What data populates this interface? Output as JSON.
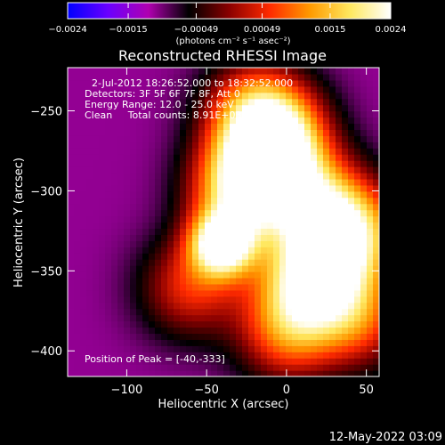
{
  "chart_data": {
    "type": "heatmap",
    "title": "Reconstructed RHESSI Image",
    "xlabel": "Heliocentric X (arcsec)",
    "ylabel": "Heliocentric Y (arcsec)",
    "xlim": [
      -137,
      58
    ],
    "ylim": [
      -416,
      -223
    ],
    "x_ticks": [
      {
        "value": -100,
        "label": "−100"
      },
      {
        "value": -50,
        "label": "−50"
      },
      {
        "value": 0,
        "label": "0"
      },
      {
        "value": 50,
        "label": "50"
      }
    ],
    "y_ticks": [
      {
        "value": -250,
        "label": "−250"
      },
      {
        "value": -300,
        "label": "−300"
      },
      {
        "value": -350,
        "label": "−350"
      },
      {
        "value": -400,
        "label": "−400"
      }
    ],
    "colorbar": {
      "min": -0.0024,
      "max": 0.0024,
      "ticks": [
        {
          "value": -0.0024,
          "label": "−0.0024"
        },
        {
          "value": -0.0015,
          "label": "−0.0015"
        },
        {
          "value": -0.00049,
          "label": "−0.00049"
        },
        {
          "value": 0.00049,
          "label": "0.00049"
        },
        {
          "value": 0.0015,
          "label": "0.0015"
        },
        {
          "value": 0.0024,
          "label": "0.0024"
        }
      ],
      "unit_label": "(photons cm⁻² s⁻¹ asec⁻²)",
      "colormap": [
        "#0000ff",
        "#6a00ff",
        "#b000b0",
        "#000000",
        "#8a0000",
        "#ff2a00",
        "#ff9a00",
        "#ffe860",
        "#ffffff"
      ]
    },
    "annotations": {
      "time_range": "2-Jul-2012 18:26:52.000 to 18:32:52.000",
      "detectors": "Detectors: 3F 5F 6F 7F 8F, Att 0",
      "energy_range": "Energy Range: 12.0 - 25.0 keV",
      "method_counts": "Clean     Total counts: 8.91E+03",
      "peak_position": "Position of Peak = [-40,-333]"
    },
    "peak": {
      "x": -40,
      "y": -333,
      "value": 0.0024
    },
    "emission_features": [
      {
        "x": -40,
        "y": -333,
        "value": 0.0024
      },
      {
        "x": -30,
        "y": -300,
        "value": 0.0014
      },
      {
        "x": -10,
        "y": -285,
        "value": 0.0012
      },
      {
        "x": -5,
        "y": -265,
        "value": 0.001
      },
      {
        "x": -20,
        "y": -250,
        "value": 0.0009
      },
      {
        "x": 20,
        "y": -310,
        "value": 0.0011
      },
      {
        "x": 25,
        "y": -345,
        "value": 0.0009
      },
      {
        "x": 45,
        "y": -325,
        "value": 0.0008
      },
      {
        "x": 10,
        "y": -360,
        "value": 0.0008
      },
      {
        "x": 0,
        "y": -390,
        "value": 0.0006
      },
      {
        "x": -60,
        "y": -360,
        "value": 0.0005
      },
      {
        "x": 45,
        "y": -380,
        "value": 0.0006
      }
    ],
    "background_level": -0.0011
  },
  "footer": {
    "timestamp": "12-May-2022 03:09"
  }
}
